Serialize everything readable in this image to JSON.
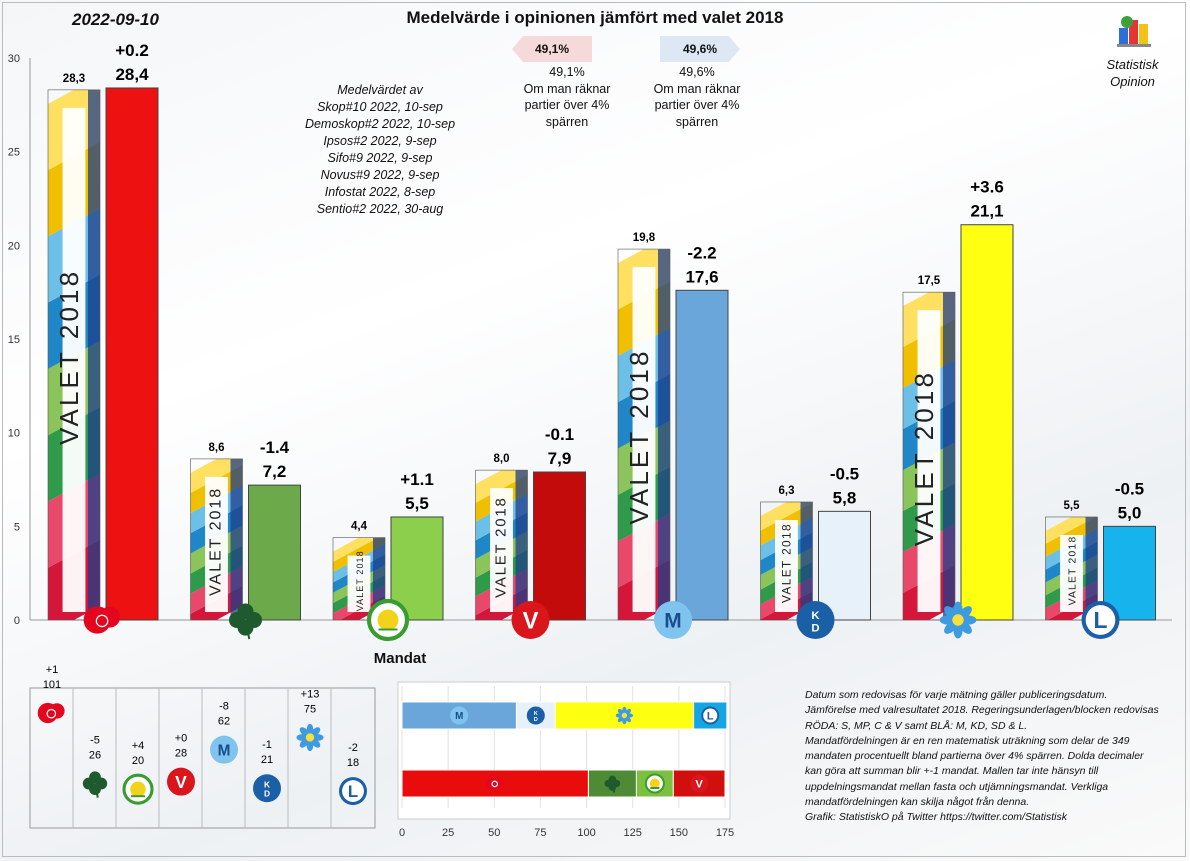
{
  "header": {
    "date": "2022-09-10",
    "title": "Medelvärde  i opinionen jämfört med valet 2018"
  },
  "blocs": {
    "red_pct": "49,1%",
    "red_pct_line": "49,1%",
    "blue_pct": "49,6%",
    "blue_pct_line": "49,6%",
    "note_lines": [
      "Om man räknar",
      "partier över 4%",
      "spärren"
    ]
  },
  "averages": {
    "heading": "Medelvärdet av",
    "polls": [
      "Skop#10 2022, 10-sep",
      "Demoskop#2 2022, 10-sep",
      "Ipsos#2 2022, 9-sep",
      "Sifo#9 2022, 9-sep",
      "Novus#9 2022, 9-sep",
      "Infostat 2022, 8-sep",
      "Sentio#2 2022, 30-aug"
    ]
  },
  "brand": {
    "line1": "Statistisk",
    "line2": "Opinion"
  },
  "mandat_title": "Mandat",
  "footnote": [
    "Datum som redovisas för varje mätning gäller publiceringsdatum.",
    "Jämförelse med valresultatet 2018. Regeringsunderlagen/blocken redovisas",
    "RÖDA: S, MP, C & V samt BLÅ: M, KD, SD & L.",
    "Mandatfördelningen är en ren matematisk uträkning som delar de 349",
    "mandaten procentuellt bland partierna över 4% spärren. Dolda decimaler",
    "kan göra att summan blir +-1 mandat. Mallen tar inte hänsyn till",
    "uppdelningsmandat mellan fasta och  utjämningsmandat. Verkliga",
    "mandatfördelningen kan skilja något från denna.",
    "Grafik: StatistiskO på Twitter  https://twitter.com/Statistisk"
  ],
  "chart_data": [
    {
      "type": "bar",
      "title": "Medelvärde  i opinionen jämfört med valet 2018",
      "categories": [
        "S",
        "C",
        "MP",
        "V",
        "M",
        "KD",
        "SD",
        "L"
      ],
      "series": [
        {
          "name": "VALET 2018",
          "values": [
            28.3,
            8.6,
            4.4,
            8.0,
            19.8,
            6.3,
            17.5,
            5.5
          ],
          "labels": [
            "28,3",
            "8,6",
            "4,4",
            "8,0",
            "19,8",
            "6,3",
            "17,5",
            "5,5"
          ]
        },
        {
          "values": [
            28.4,
            7.2,
            5.5,
            7.9,
            17.6,
            5.8,
            21.1,
            5.0
          ],
          "labels": [
            "28,4",
            "7,2",
            "5,5",
            "7,9",
            "17,6",
            "5,8",
            "21,1",
            "5,0"
          ]
        }
      ],
      "changes": [
        "+0.2",
        "-1.4",
        "+1.1",
        "-0.1",
        "-2.2",
        "-0.5",
        "+3.6",
        "-0.5"
      ],
      "valet_text": "VALET 2018",
      "colors": [
        "#ee1111",
        "#6ca94a",
        "#8ccf4d",
        "#c40b0b",
        "#6aa6d9",
        "#e6f1fa",
        "#ffff11",
        "#16b3ec"
      ],
      "ylim": [
        0,
        30
      ],
      "yticks": [
        0,
        5,
        10,
        15,
        20,
        25,
        30
      ]
    },
    {
      "type": "table",
      "title": "Mandat",
      "parties": [
        "S",
        "C",
        "MP",
        "V",
        "M",
        "KD",
        "SD",
        "L"
      ],
      "changes": [
        "+1",
        "-5",
        "+4",
        "+0",
        "-8",
        "-1",
        "+13",
        "-2"
      ],
      "seats": [
        101,
        26,
        20,
        28,
        62,
        21,
        75,
        18
      ]
    },
    {
      "type": "bar",
      "orientation": "horizontal-stacked",
      "blocks": [
        {
          "name": "BLÅ",
          "parties": [
            "M",
            "KD",
            "SD",
            "L"
          ],
          "values": [
            62,
            21,
            75,
            18
          ]
        },
        {
          "name": "RÖDA",
          "parties": [
            "S",
            "C",
            "MP",
            "V"
          ],
          "values": [
            101,
            26,
            20,
            28
          ]
        }
      ],
      "xlim": [
        0,
        175
      ],
      "xticks": [
        0,
        25,
        50,
        75,
        100,
        125,
        150,
        175
      ]
    }
  ]
}
